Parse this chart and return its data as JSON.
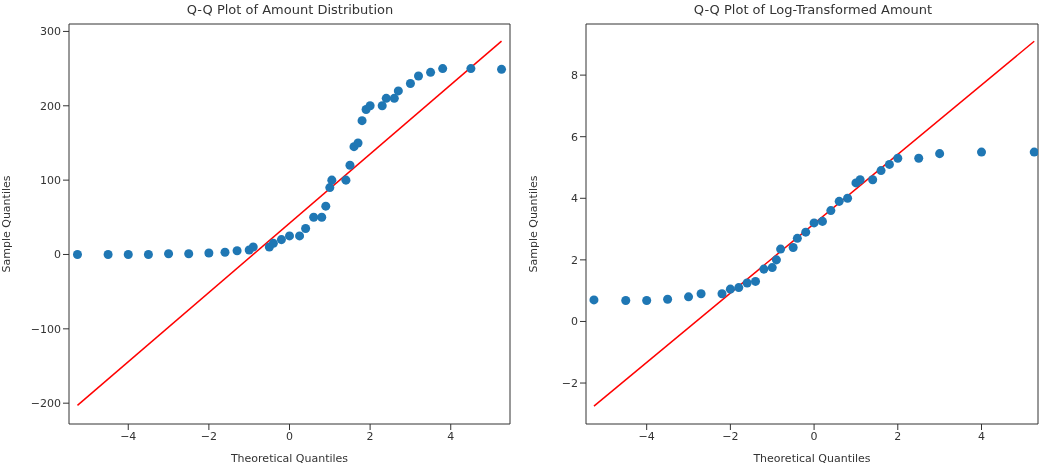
{
  "chart_data": [
    {
      "type": "scatter",
      "title": "Q-Q Plot of Amount Distribution",
      "xlabel": "Theoretical Quantiles",
      "ylabel": "Sample Quantiles",
      "xlim": [
        -5.47,
        5.47
      ],
      "ylim": [
        -228,
        310
      ],
      "xticks": [
        -4,
        -2,
        0,
        2,
        4
      ],
      "yticks": [
        -200,
        -100,
        0,
        100,
        200,
        300
      ],
      "series": [
        {
          "marker": "circle",
          "color": "#1f77b4",
          "x": [
            -5.26,
            -4.5,
            -4,
            -3.5,
            -3,
            -2.5,
            -2,
            -1.6,
            -1.3,
            -1,
            -0.9,
            -0.5,
            -0.4,
            -0.2,
            0,
            0.25,
            0.4,
            0.6,
            0.8,
            0.9,
            1.0,
            1.05,
            1.4,
            1.5,
            1.6,
            1.7,
            1.8,
            1.9,
            2.0,
            2.3,
            2.4,
            2.6,
            2.7,
            3.0,
            3.2,
            3.5,
            3.8,
            4.5,
            5.26
          ],
          "values": [
            0,
            0,
            0,
            0,
            1,
            1,
            2,
            3,
            5,
            6,
            10,
            10,
            15,
            20,
            25,
            25,
            35,
            50,
            50,
            65,
            90,
            100,
            100,
            120,
            145,
            150,
            180,
            195,
            200,
            200,
            210,
            210,
            220,
            230,
            240,
            245,
            250,
            250,
            249
          ]
        },
        {
          "type": "line",
          "color": "#ff0000",
          "x": [
            -5.26,
            5.26
          ],
          "values": [
            -203,
            287
          ]
        }
      ]
    },
    {
      "type": "scatter",
      "title": "Q-Q Plot of Log-Transformed Amount",
      "xlabel": "Theoretical Quantiles",
      "ylabel": "Sample Quantiles",
      "xlim": [
        -5.45,
        5.35
      ],
      "ylim": [
        -3.33,
        9.66
      ],
      "xticks": [
        -4,
        -2,
        0,
        2,
        4
      ],
      "yticks": [
        -2,
        0,
        2,
        4,
        6,
        8
      ],
      "series": [
        {
          "marker": "circle",
          "color": "#1f77b4",
          "x": [
            -5.26,
            -4.5,
            -4,
            -3.5,
            -3,
            -2.7,
            -2.2,
            -2,
            -1.8,
            -1.6,
            -1.4,
            -1.2,
            -1.0,
            -0.9,
            -0.8,
            -0.5,
            -0.4,
            -0.2,
            0,
            0.2,
            0.4,
            0.6,
            0.8,
            1.0,
            1.1,
            1.4,
            1.6,
            1.8,
            2.0,
            2.5,
            3.0,
            4,
            5.26
          ],
          "values": [
            0.7,
            0.68,
            0.68,
            0.72,
            0.8,
            0.9,
            0.9,
            1.05,
            1.1,
            1.25,
            1.3,
            1.7,
            1.75,
            2.0,
            2.35,
            2.4,
            2.7,
            2.9,
            3.2,
            3.25,
            3.6,
            3.9,
            4.0,
            4.5,
            4.6,
            4.6,
            4.9,
            5.1,
            5.3,
            5.3,
            5.45,
            5.5,
            5.5
          ]
        },
        {
          "type": "line",
          "color": "#ff0000",
          "x": [
            -5.26,
            5.26
          ],
          "values": [
            -2.75,
            9.1
          ]
        }
      ]
    }
  ]
}
